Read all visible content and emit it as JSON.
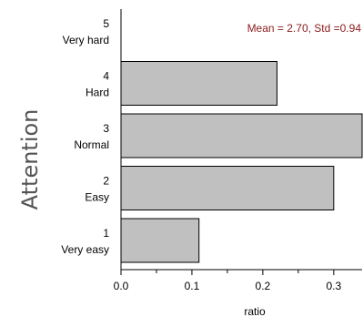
{
  "chart_data": {
    "type": "bar",
    "orientation": "horizontal",
    "categories": [
      {
        "code": "1",
        "label": "Very easy"
      },
      {
        "code": "2",
        "label": "Easy"
      },
      {
        "code": "3",
        "label": "Normal"
      },
      {
        "code": "4",
        "label": "Hard"
      },
      {
        "code": "5",
        "label": "Very hard"
      }
    ],
    "values": [
      0.11,
      0.3,
      0.34,
      0.22,
      0.0
    ],
    "xlabel": "ratio",
    "ylabel": "Attention",
    "xlim": [
      0,
      0.34
    ],
    "xticks": [
      0.0,
      0.1,
      0.2,
      0.3
    ],
    "xtick_labels": [
      "0.0",
      "0.1",
      "0.2",
      "0.3"
    ],
    "minor_xticks": [
      0.05,
      0.15,
      0.25
    ],
    "grid": false,
    "annotation": "Mean = 2.70, Std =0.94",
    "colors": {
      "bar_fill": "#c0c0c0",
      "bar_stroke": "#000000",
      "annotation": "#8b1a1a"
    }
  }
}
